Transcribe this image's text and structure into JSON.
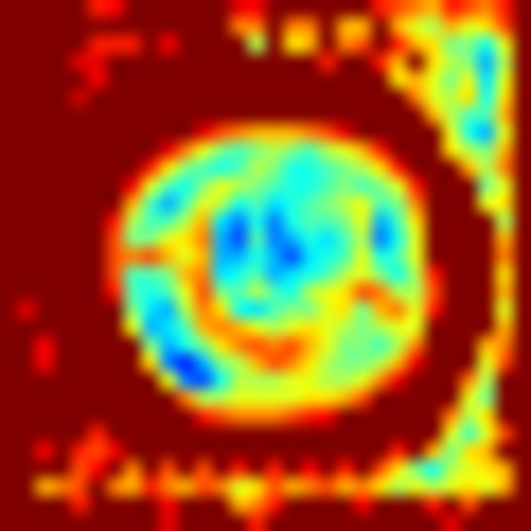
{
  "chart_data": {
    "type": "heatmap",
    "tick_labels": false,
    "grid": false,
    "color_range": [
      0,
      100
    ],
    "cells": [
      [
        100,
        100,
        100,
        100,
        100,
        85,
        88,
        100,
        100,
        100,
        100,
        100,
        100,
        90,
        88,
        100,
        100,
        100,
        100,
        100,
        100,
        85,
        80,
        75,
        70,
        85,
        80,
        75,
        85,
        100
      ],
      [
        100,
        100,
        100,
        100,
        100,
        100,
        100,
        100,
        100,
        100,
        100,
        100,
        100,
        75,
        75,
        100,
        75,
        75,
        100,
        70,
        70,
        100,
        70,
        60,
        55,
        70,
        60,
        65,
        80,
        100
      ],
      [
        100,
        100,
        100,
        100,
        100,
        85,
        85,
        85,
        100,
        88,
        100,
        100,
        100,
        100,
        55,
        100,
        65,
        70,
        100,
        75,
        80,
        100,
        85,
        70,
        65,
        50,
        50,
        40,
        60,
        100
      ],
      [
        100,
        100,
        100,
        100,
        90,
        90,
        100,
        100,
        100,
        100,
        100,
        100,
        100,
        100,
        100,
        100,
        100,
        100,
        85,
        100,
        100,
        85,
        70,
        100,
        65,
        55,
        50,
        30,
        55,
        100
      ],
      [
        100,
        100,
        100,
        100,
        100,
        88,
        100,
        100,
        100,
        100,
        100,
        100,
        100,
        100,
        100,
        100,
        100,
        100,
        100,
        100,
        100,
        100,
        65,
        70,
        60,
        50,
        60,
        35,
        60,
        100
      ],
      [
        100,
        100,
        100,
        100,
        92,
        100,
        100,
        100,
        100,
        100,
        100,
        100,
        100,
        100,
        100,
        100,
        100,
        100,
        100,
        100,
        100,
        100,
        100,
        75,
        60,
        55,
        65,
        40,
        65,
        100
      ],
      [
        100,
        100,
        100,
        100,
        100,
        100,
        100,
        100,
        100,
        100,
        100,
        100,
        100,
        100,
        100,
        100,
        100,
        100,
        100,
        100,
        100,
        100,
        100,
        100,
        70,
        55,
        45,
        45,
        70,
        100
      ],
      [
        100,
        100,
        100,
        100,
        100,
        100,
        100,
        100,
        100,
        100,
        100,
        90,
        80,
        75,
        70,
        70,
        70,
        75,
        80,
        90,
        100,
        100,
        100,
        100,
        100,
        60,
        40,
        30,
        60,
        100
      ],
      [
        100,
        100,
        100,
        100,
        100,
        100,
        100,
        100,
        100,
        90,
        75,
        60,
        50,
        45,
        50,
        55,
        50,
        45,
        55,
        60,
        70,
        85,
        100,
        100,
        100,
        65,
        55,
        50,
        70,
        100
      ],
      [
        100,
        100,
        100,
        100,
        100,
        100,
        100,
        100,
        85,
        65,
        50,
        45,
        40,
        45,
        55,
        50,
        40,
        40,
        45,
        50,
        55,
        65,
        85,
        100,
        100,
        100,
        70,
        55,
        75,
        100
      ],
      [
        100,
        100,
        100,
        100,
        100,
        100,
        100,
        88,
        60,
        45,
        40,
        50,
        60,
        55,
        50,
        45,
        40,
        40,
        45,
        50,
        45,
        50,
        60,
        85,
        100,
        100,
        100,
        50,
        60,
        100
      ],
      [
        100,
        100,
        100,
        100,
        100,
        100,
        100,
        70,
        45,
        30,
        45,
        60,
        55,
        40,
        45,
        35,
        40,
        45,
        50,
        55,
        60,
        45,
        50,
        75,
        100,
        100,
        100,
        60,
        65,
        100
      ],
      [
        100,
        100,
        100,
        100,
        100,
        100,
        85,
        55,
        45,
        45,
        55,
        70,
        35,
        25,
        40,
        25,
        40,
        45,
        45,
        50,
        60,
        30,
        45,
        65,
        100,
        100,
        100,
        100,
        55,
        100
      ],
      [
        100,
        100,
        100,
        100,
        100,
        100,
        80,
        50,
        50,
        60,
        65,
        75,
        30,
        20,
        45,
        25,
        30,
        40,
        35,
        45,
        55,
        25,
        40,
        60,
        100,
        100,
        100,
        100,
        70,
        100
      ],
      [
        100,
        100,
        100,
        100,
        100,
        100,
        80,
        75,
        80,
        70,
        60,
        70,
        30,
        30,
        40,
        30,
        20,
        35,
        40,
        45,
        60,
        40,
        45,
        60,
        100,
        100,
        100,
        100,
        75,
        100
      ],
      [
        100,
        100,
        100,
        100,
        100,
        100,
        80,
        45,
        45,
        50,
        70,
        75,
        35,
        40,
        45,
        30,
        35,
        40,
        45,
        55,
        60,
        50,
        40,
        55,
        85,
        100,
        100,
        100,
        65,
        100
      ],
      [
        100,
        100,
        100,
        100,
        100,
        100,
        85,
        45,
        40,
        45,
        60,
        80,
        50,
        45,
        55,
        45,
        40,
        55,
        60,
        65,
        80,
        75,
        55,
        55,
        80,
        100,
        100,
        100,
        70,
        100
      ],
      [
        100,
        90,
        100,
        100,
        100,
        100,
        100,
        50,
        35,
        30,
        55,
        75,
        65,
        40,
        35,
        45,
        50,
        50,
        60,
        65,
        50,
        70,
        75,
        60,
        85,
        100,
        100,
        100,
        60,
        100
      ],
      [
        100,
        100,
        100,
        100,
        100,
        100,
        100,
        60,
        30,
        35,
        45,
        70,
        75,
        70,
        60,
        55,
        60,
        65,
        60,
        55,
        50,
        55,
        60,
        60,
        100,
        100,
        100,
        100,
        70,
        100
      ],
      [
        100,
        100,
        88,
        100,
        100,
        100,
        100,
        100,
        50,
        30,
        40,
        50,
        65,
        75,
        80,
        75,
        80,
        70,
        60,
        50,
        50,
        45,
        55,
        75,
        100,
        100,
        100,
        70,
        75,
        100
      ],
      [
        100,
        100,
        88,
        100,
        100,
        100,
        100,
        100,
        65,
        25,
        15,
        30,
        50,
        55,
        70,
        80,
        75,
        65,
        55,
        50,
        50,
        55,
        70,
        90,
        100,
        100,
        100,
        60,
        80,
        100
      ],
      [
        100,
        100,
        100,
        100,
        100,
        100,
        100,
        100,
        100,
        60,
        25,
        20,
        40,
        55,
        55,
        55,
        60,
        60,
        55,
        55,
        60,
        75,
        90,
        100,
        100,
        100,
        75,
        55,
        100,
        100
      ],
      [
        100,
        100,
        100,
        100,
        100,
        100,
        100,
        100,
        100,
        100,
        75,
        55,
        55,
        60,
        60,
        60,
        60,
        65,
        65,
        70,
        80,
        100,
        100,
        100,
        100,
        100,
        60,
        50,
        100,
        100
      ],
      [
        100,
        100,
        100,
        100,
        100,
        100,
        100,
        100,
        100,
        100,
        100,
        85,
        80,
        75,
        75,
        75,
        80,
        85,
        88,
        100,
        100,
        100,
        100,
        100,
        100,
        75,
        55,
        65,
        100,
        100
      ],
      [
        100,
        100,
        100,
        100,
        100,
        85,
        100,
        100,
        100,
        100,
        100,
        100,
        100,
        100,
        100,
        100,
        100,
        100,
        100,
        100,
        100,
        100,
        100,
        100,
        100,
        60,
        45,
        60,
        80,
        100
      ],
      [
        100,
        100,
        88,
        100,
        85,
        80,
        88,
        100,
        100,
        100,
        100,
        100,
        100,
        100,
        100,
        100,
        100,
        100,
        100,
        100,
        100,
        100,
        85,
        100,
        70,
        50,
        65,
        70,
        100,
        100
      ],
      [
        100,
        100,
        100,
        100,
        80,
        88,
        100,
        75,
        100,
        80,
        100,
        80,
        100,
        85,
        100,
        85,
        100,
        88,
        100,
        85,
        100,
        80,
        65,
        50,
        40,
        55,
        60,
        65,
        70,
        100
      ],
      [
        100,
        100,
        70,
        75,
        80,
        100,
        75,
        70,
        85,
        75,
        70,
        80,
        75,
        60,
        65,
        80,
        70,
        75,
        80,
        70,
        75,
        65,
        55,
        60,
        55,
        60,
        65,
        60,
        70,
        100
      ],
      [
        100,
        100,
        100,
        100,
        85,
        100,
        100,
        100,
        100,
        88,
        100,
        100,
        100,
        70,
        75,
        85,
        100,
        100,
        100,
        100,
        88,
        100,
        100,
        100,
        85,
        100,
        80,
        100,
        100,
        100
      ],
      [
        100,
        100,
        100,
        100,
        100,
        100,
        100,
        100,
        100,
        90,
        100,
        100,
        100,
        100,
        85,
        100,
        100,
        100,
        100,
        100,
        100,
        100,
        100,
        100,
        100,
        90,
        100,
        100,
        100,
        100
      ]
    ]
  }
}
